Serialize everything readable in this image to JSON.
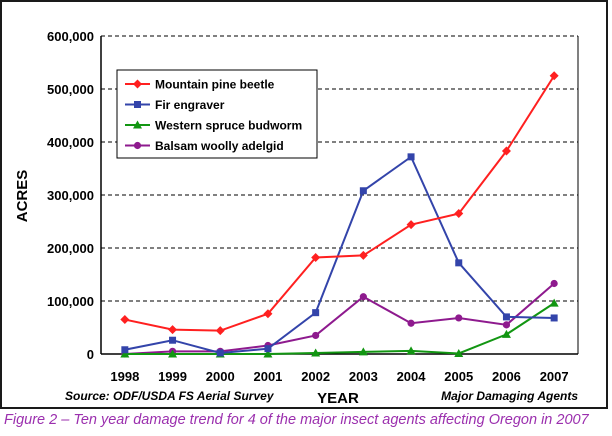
{
  "chart_data": {
    "type": "line",
    "title": "",
    "xlabel": "YEAR",
    "ylabel": "ACRES",
    "x": [
      1998,
      1999,
      2000,
      2001,
      2002,
      2003,
      2004,
      2005,
      2006,
      2007
    ],
    "ylim": [
      0,
      600000
    ],
    "yticks": [
      0,
      100000,
      200000,
      300000,
      400000,
      500000,
      600000
    ],
    "ytick_labels": [
      "0",
      "100,000",
      "200,000",
      "300,000",
      "400,000",
      "500,000",
      "600,000"
    ],
    "grid": "horizontal dashed",
    "legend_position": "top-left",
    "series": [
      {
        "name": "Mountain pine beetle",
        "color": "#ff2020",
        "marker": "diamond",
        "values": [
          65000,
          46000,
          44000,
          76000,
          182000,
          186000,
          244000,
          265000,
          383000,
          525000
        ]
      },
      {
        "name": "Fir engraver",
        "color": "#3344aa",
        "marker": "square",
        "values": [
          8000,
          26000,
          2000,
          10000,
          78000,
          308000,
          372000,
          172000,
          70000,
          68000
        ]
      },
      {
        "name": "Western spruce budworm",
        "color": "#129612",
        "marker": "triangle",
        "values": [
          0,
          0,
          0,
          0,
          2000,
          4000,
          6000,
          1000,
          37000,
          96000
        ]
      },
      {
        "name": "Balsam woolly adelgid",
        "color": "#8e1a8e",
        "marker": "circle",
        "values": [
          0,
          5000,
          5000,
          16000,
          35000,
          108000,
          58000,
          68000,
          55000,
          133000
        ]
      }
    ],
    "source_note": "Source: ODF/USDA FS Aerial Survey",
    "right_note": "Major Damaging Agents"
  },
  "caption": "Figure 2 – Ten year damage trend for 4 of the major insect agents affecting Oregon in 2007"
}
